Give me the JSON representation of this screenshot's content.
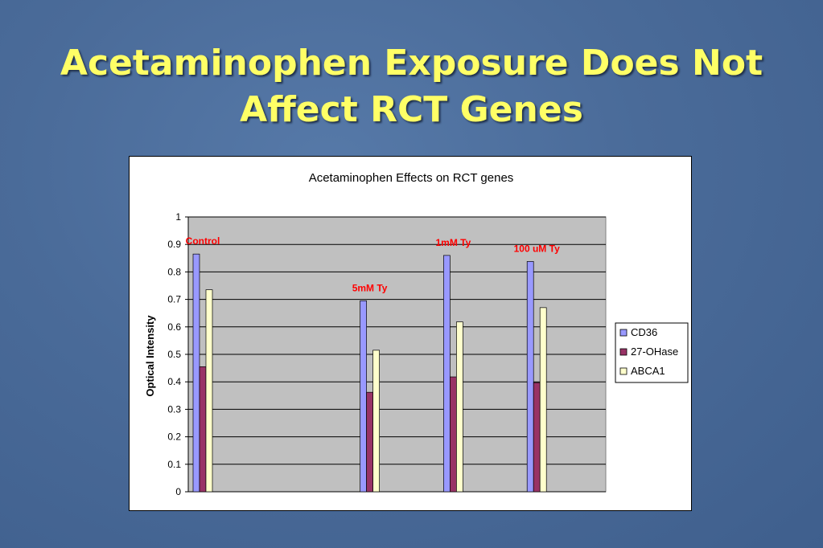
{
  "slide": {
    "title_line1": "Acetaminophen Exposure Does Not",
    "title_line2": "Affect RCT Genes"
  },
  "colors": {
    "background": "#4a6b99",
    "title": "#ffff66",
    "plot_area": "#c0c0c0",
    "annotation": "#ff0000"
  },
  "chart_data": {
    "type": "bar",
    "title": "Acetaminophen Effects on RCT genes",
    "ylabel": "Optical Intensity",
    "xlabel": "",
    "ylim": [
      0,
      1
    ],
    "yticks": [
      "0",
      "0.1",
      "0.2",
      "0.3",
      "0.4",
      "0.5",
      "0.6",
      "0.7",
      "0.8",
      "0.9",
      "1"
    ],
    "grid": true,
    "legend_position": "right",
    "groups": 5,
    "categories": [
      "Control",
      "5mM Ty",
      "1mM Ty",
      "100 uM Ty"
    ],
    "category_slots": [
      0,
      2,
      3,
      4
    ],
    "series": [
      {
        "name": "CD36",
        "color": "#9999ff",
        "values": [
          0.865,
          0.695,
          0.86,
          0.838
        ]
      },
      {
        "name": "27-OHase",
        "color": "#993366",
        "values": [
          0.455,
          0.362,
          0.418,
          0.397
        ]
      },
      {
        "name": "ABCA1",
        "color": "#ffffcc",
        "values": [
          0.735,
          0.515,
          0.618,
          0.67
        ]
      }
    ]
  }
}
